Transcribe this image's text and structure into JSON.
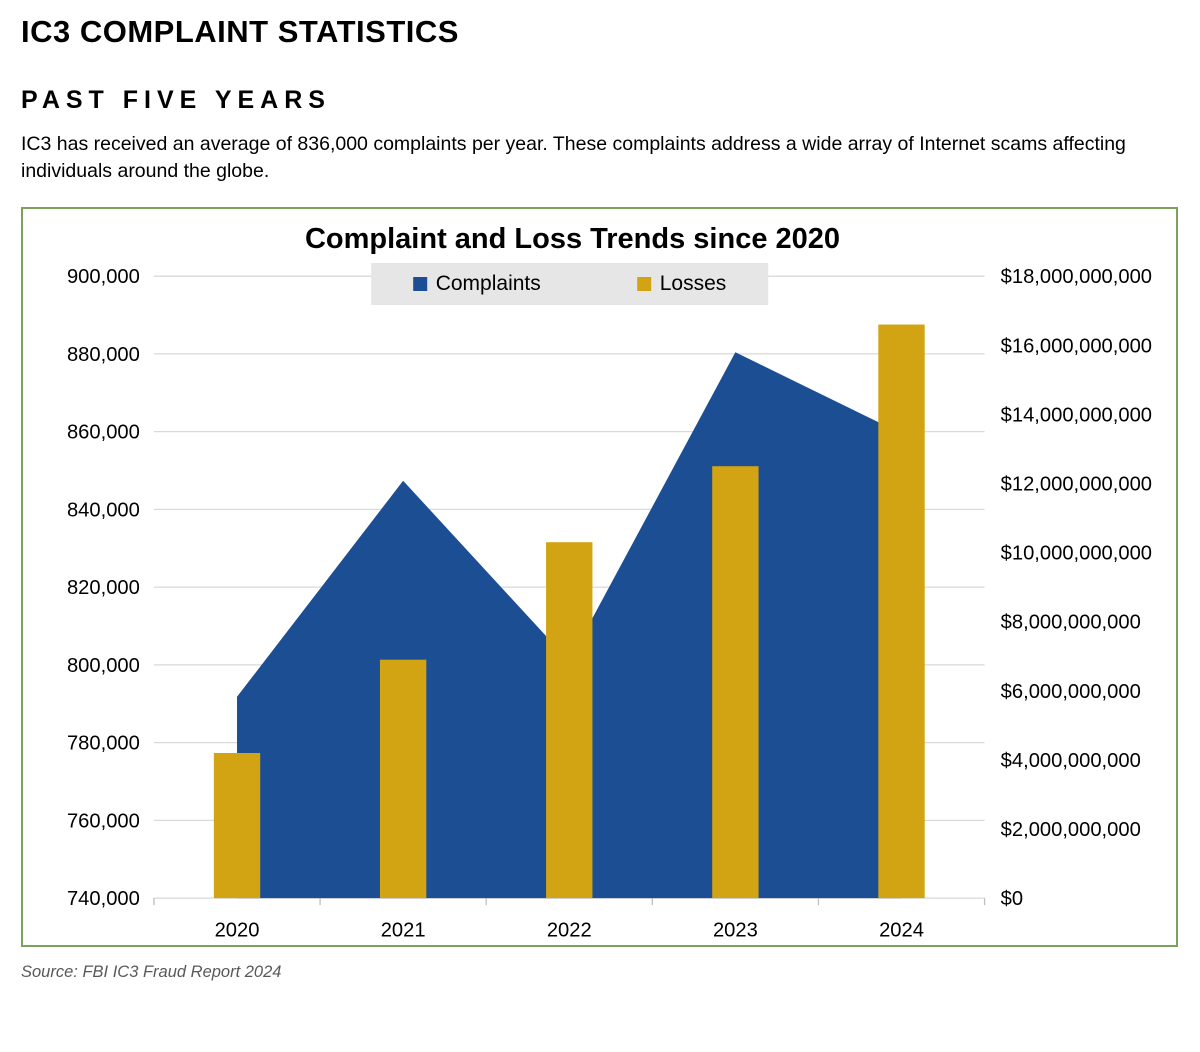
{
  "page": {
    "title": "IC3 COMPLAINT STATISTICS",
    "subtitle": "PAST FIVE YEARS",
    "intro": "IC3 has received an average of 836,000 complaints per year. These complaints address a wide array of Internet scams affecting individuals around the globe.",
    "source": "Source: FBI IC3 Fraud Report 2024"
  },
  "colors": {
    "card_border": "#7CA15E",
    "legend_background": "#E6E6E6",
    "gridline": "#D9D9D9",
    "tick": "#BFBFBF",
    "complaints_blue": "#1C4E94",
    "losses_gold": "#D2A312"
  },
  "chart_data": {
    "type": "combo",
    "title": "Complaint and Loss Trends since 2020",
    "categories": [
      "2020",
      "2021",
      "2022",
      "2023",
      "2024"
    ],
    "series": [
      {
        "name": "Complaints",
        "type": "area",
        "axis": "left",
        "color": "#1C4E94",
        "values": [
          791790,
          847376,
          800944,
          880418,
          859532
        ]
      },
      {
        "name": "Losses",
        "type": "bar",
        "axis": "right",
        "color": "#D2A312",
        "values": [
          4200000000,
          6900000000,
          10300000000,
          12500000000,
          16600000000
        ]
      }
    ],
    "left_axis": {
      "min": 740000,
      "max": 900000,
      "step": 20000,
      "tick_labels": [
        "740,000",
        "760,000",
        "780,000",
        "800,000",
        "820,000",
        "840,000",
        "860,000",
        "880,000",
        "900,000"
      ]
    },
    "right_axis": {
      "min": 0,
      "max": 18000000000,
      "step": 2000000000,
      "tick_labels": [
        "$0",
        "$2,000,000,000",
        "$4,000,000,000",
        "$6,000,000,000",
        "$8,000,000,000",
        "$10,000,000,000",
        "$12,000,000,000",
        "$14,000,000,000",
        "$16,000,000,000",
        "$18,000,000,000"
      ]
    },
    "legend": [
      "Complaints",
      "Losses"
    ],
    "legend_position": "top-center",
    "grid": true
  }
}
